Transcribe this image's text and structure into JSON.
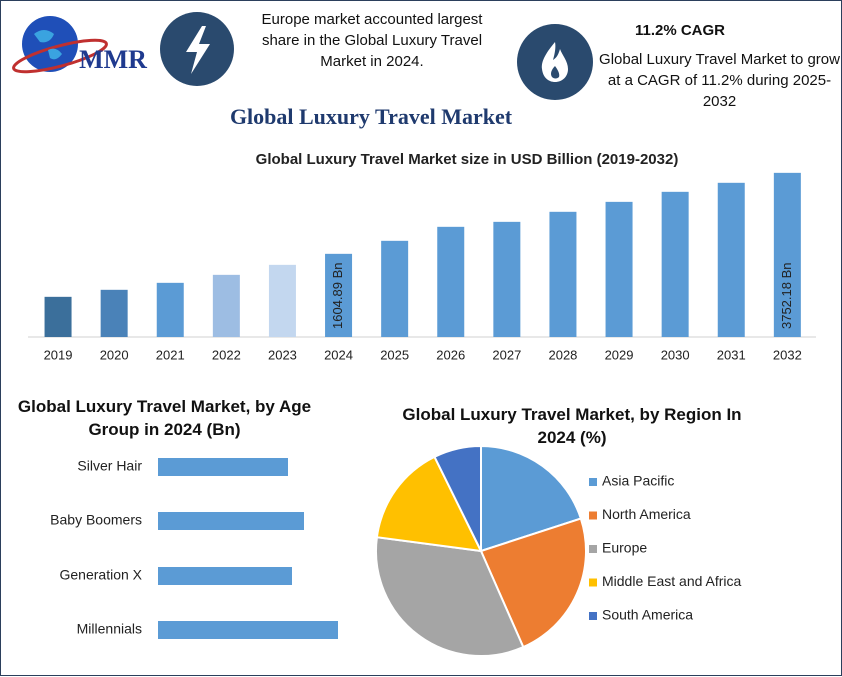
{
  "header": {
    "logo": "MMR",
    "note": "Europe market accounted largest share in the Global Luxury Travel Market in 2024.",
    "cagr_title": "11.2% CAGR",
    "cagr_note": "Global Luxury Travel Market to grow at a CAGR of 11.2% during 2025-2032"
  },
  "title": "Global Luxury Travel Market",
  "chart_data": [
    {
      "type": "bar",
      "title": "Global Luxury Travel Market size in USD Billion (2019-2032)",
      "categories": [
        "2019",
        "2020",
        "2021",
        "2022",
        "2023",
        "2024",
        "2025",
        "2026",
        "2027",
        "2028",
        "2029",
        "2030",
        "2031",
        "2032"
      ],
      "values": [
        465,
        651,
        836,
        1048,
        1313,
        1604.89,
        1950,
        2321,
        2453,
        2719,
        2983,
        3249,
        3488,
        3752.18
      ],
      "value_labels": [
        null,
        null,
        null,
        null,
        null,
        "1604.89 Bn",
        null,
        null,
        null,
        null,
        null,
        null,
        null,
        "3752.18 Bn"
      ],
      "colors": [
        "#3b6f9b",
        "#4a82b8",
        "#5b9bd5",
        "#9dbde3",
        "#c3d7ef",
        "#5b9bd5",
        "#5b9bd5",
        "#5b9bd5",
        "#5b9bd5",
        "#5b9bd5",
        "#5b9bd5",
        "#5b9bd5",
        "#5b9bd5",
        "#5b9bd5"
      ],
      "ylim": [
        -600,
        4000
      ]
    },
    {
      "type": "bar",
      "horizontal": true,
      "title": "Global Luxury Travel Market, by Age Group in 2024 (Bn)",
      "categories": [
        "Silver Hair",
        "Baby Boomers",
        "Generation X",
        "Millennials"
      ],
      "values": [
        65,
        73,
        67,
        90
      ],
      "color": "#5b9bd5",
      "xlim": [
        0,
        100
      ]
    },
    {
      "type": "pie",
      "title": "Global Luxury Travel Market, by Region In 2024 (%)",
      "categories": [
        "Asia Pacific",
        "North America",
        "Europe",
        "Middle East and Africa",
        "South America"
      ],
      "values": [
        20,
        23.4,
        33.7,
        15.6,
        7.3
      ],
      "colors": [
        "#5b9bd5",
        "#ed7d31",
        "#a5a5a5",
        "#ffc000",
        "#4472c4"
      ]
    }
  ]
}
